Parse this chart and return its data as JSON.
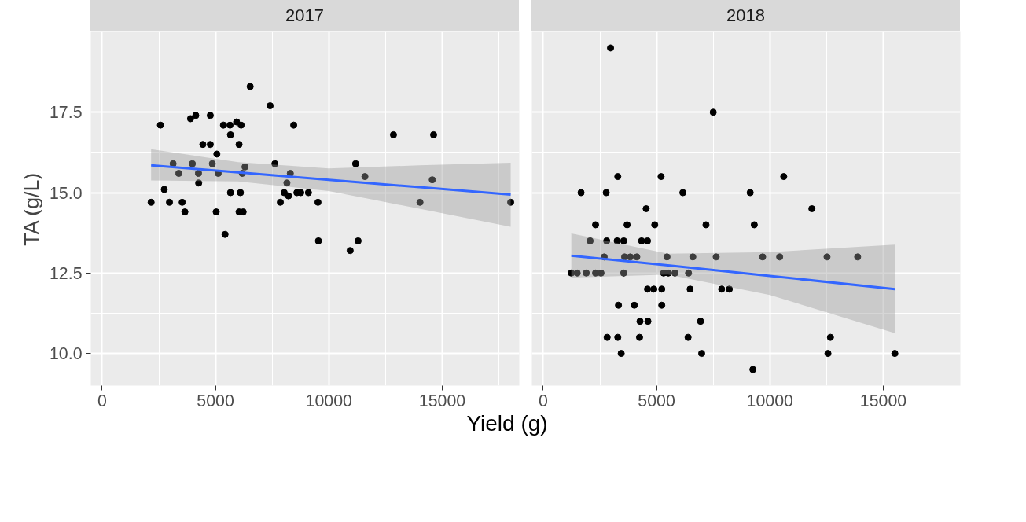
{
  "chart_data": [
    {
      "type": "scatter",
      "title": "2017",
      "ylabel": "TA (g/L)",
      "xlabel": "Yield (g)",
      "xlim": [
        -500,
        18400
      ],
      "ylim": [
        9.0,
        20.0
      ],
      "xticks": [
        0,
        5000,
        10000,
        15000
      ],
      "yticks": [
        {
          "value": 10,
          "label": "10.0"
        },
        12.5,
        {
          "value": 15,
          "label": "15.0"
        },
        17.5
      ],
      "grid": true,
      "series": [
        {
          "color": "#000000",
          "marker": "circle",
          "x": [
            6530,
            7410,
            2570,
            3900,
            4130,
            4770,
            5350,
            5640,
            5930,
            6130,
            5660,
            4440,
            4770,
            6040,
            5060,
            8450,
            3130,
            3980,
            4860,
            3380,
            4250,
            5120,
            6300,
            6180,
            7620,
            8300,
            8150,
            4260,
            2740,
            2160,
            2970,
            3530,
            3650,
            5030,
            5660,
            6100,
            6040,
            6220,
            5420,
            8030,
            8590,
            8760,
            9100,
            8220,
            7860,
            9520,
            9540,
            10940,
            11290,
            11180,
            11590,
            12850,
            14620,
            14560,
            14020,
            18020
          ],
          "values": [
            18.3,
            17.7,
            17.1,
            17.3,
            17.4,
            17.4,
            17.1,
            17.1,
            17.2,
            17.1,
            16.8,
            16.5,
            16.5,
            16.5,
            16.2,
            17.1,
            15.9,
            15.9,
            15.9,
            15.6,
            15.6,
            15.6,
            15.8,
            15.6,
            15.9,
            15.6,
            15.3,
            15.3,
            15.1,
            14.7,
            14.7,
            14.7,
            14.4,
            14.4,
            15.0,
            15.0,
            14.4,
            14.4,
            13.7,
            15.0,
            15.0,
            15.0,
            15.0,
            14.9,
            14.7,
            14.7,
            13.5,
            13.2,
            13.5,
            15.9,
            15.5,
            16.8,
            16.8,
            15.4,
            14.7,
            14.7
          ]
        },
        {
          "type": "line",
          "color": "#3366ff",
          "x": [
            2160,
            6000,
            10000,
            14000,
            18020
          ],
          "values": [
            15.85,
            15.63,
            15.4,
            15.17,
            14.94
          ],
          "lower": [
            15.38,
            15.35,
            15.05,
            14.5,
            13.94
          ],
          "upper": [
            16.35,
            15.95,
            15.75,
            15.85,
            15.93
          ]
        }
      ]
    },
    {
      "type": "scatter",
      "title": "2018",
      "xlim": [
        -500,
        18400
      ],
      "ylim": [
        9.0,
        20.0
      ],
      "xticks": [
        0,
        5000,
        10000,
        15000
      ],
      "yticks": [
        10,
        12.5,
        15,
        17.5
      ],
      "tick_labels": "x",
      "grid": true,
      "series": [
        {
          "color": "#000000",
          "marker": "circle",
          "x": [
            2970,
            7500,
            3290,
            5200,
            1670,
            2780,
            6160,
            4540,
            2310,
            3700,
            4920,
            7180,
            2070,
            2800,
            3260,
            3550,
            4340,
            4600,
            2690,
            3590,
            3840,
            4130,
            5460,
            6600,
            7630,
            1240,
            1500,
            1900,
            2310,
            2550,
            3550,
            5310,
            5520,
            5810,
            6410,
            4600,
            4880,
            5230,
            6480,
            7870,
            8210,
            3320,
            4020,
            5230,
            4270,
            4620,
            6940,
            2820,
            3290,
            4250,
            6390,
            3440,
            6990,
            10610,
            9130,
            11850,
            9310,
            9680,
            10430,
            12520,
            13870,
            12670,
            12560,
            15510,
            9250
          ],
          "values": [
            19.5,
            17.5,
            15.5,
            15.5,
            15.0,
            15.0,
            15.0,
            14.5,
            14.0,
            14.0,
            14.0,
            14.0,
            13.5,
            13.5,
            13.5,
            13.5,
            13.5,
            13.5,
            13.0,
            13.0,
            13.0,
            13.0,
            13.0,
            13.0,
            13.0,
            12.5,
            12.5,
            12.5,
            12.5,
            12.5,
            12.5,
            12.5,
            12.5,
            12.5,
            12.5,
            12.0,
            12.0,
            12.0,
            12.0,
            12.0,
            12.0,
            11.5,
            11.5,
            11.5,
            11.0,
            11.0,
            11.0,
            10.5,
            10.5,
            10.5,
            10.5,
            10.0,
            10.0,
            15.5,
            15.0,
            14.5,
            14.0,
            13.0,
            13.0,
            13.0,
            13.0,
            10.5,
            10.0,
            10.0,
            9.5
          ]
        },
        {
          "type": "line",
          "color": "#3366ff",
          "x": [
            1240,
            5500,
            10000,
            15510
          ],
          "values": [
            13.04,
            12.74,
            12.41,
            12.0
          ],
          "lower": [
            12.36,
            12.45,
            11.82,
            10.63
          ],
          "upper": [
            13.73,
            13.1,
            13.15,
            13.38
          ]
        }
      ]
    }
  ]
}
